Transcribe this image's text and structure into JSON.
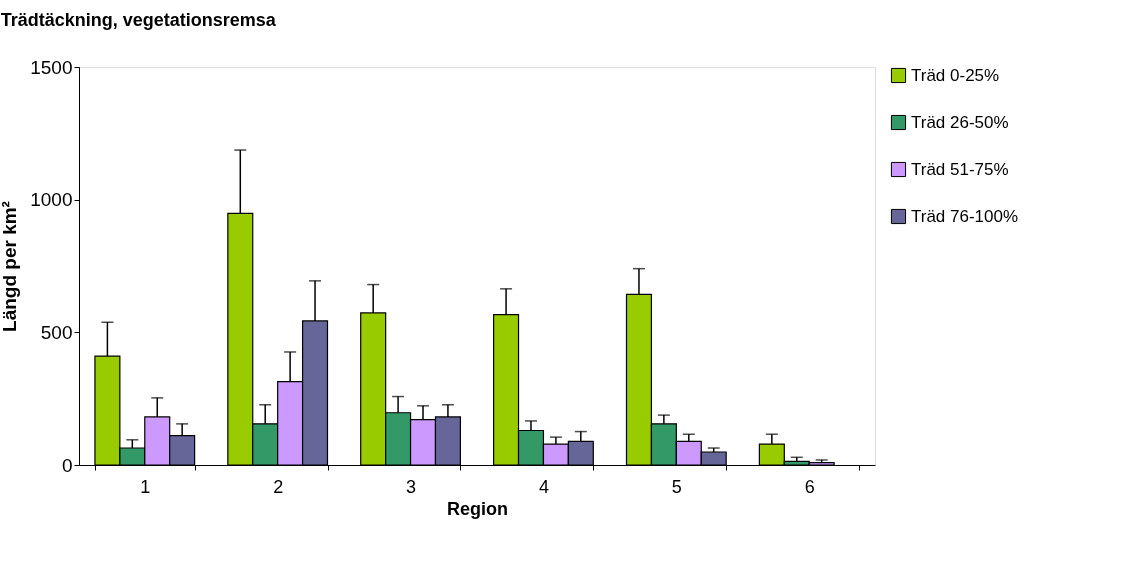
{
  "chart_data": {
    "type": "bar",
    "title": "Trädtäckning, vegetationsremsa",
    "xlabel": "Region",
    "ylabel": "Längd per km²",
    "categories": [
      "1",
      "2",
      "3",
      "4",
      "5",
      "6"
    ],
    "series": [
      {
        "name": "Träd 0-25%",
        "color": "#99cc00",
        "values": [
          410,
          948,
          573,
          567,
          643,
          79
        ],
        "errors": [
          [
            410,
            538
          ],
          [
            948,
            1187
          ],
          [
            573,
            680
          ],
          [
            567,
            664
          ],
          [
            643,
            740
          ],
          [
            79,
            116
          ]
        ]
      },
      {
        "name": "Träd 26-50%",
        "color": "#339966",
        "values": [
          64,
          155,
          197,
          130,
          155,
          14
        ],
        "errors": [
          [
            64,
            95
          ],
          [
            155,
            227
          ],
          [
            197,
            258
          ],
          [
            130,
            166
          ],
          [
            155,
            188
          ],
          [
            14,
            29
          ]
        ]
      },
      {
        "name": "Träd 51-75%",
        "color": "#cc99ff",
        "values": [
          181,
          314,
          171,
          79,
          89,
          9
        ],
        "errors": [
          [
            181,
            253
          ],
          [
            314,
            426
          ],
          [
            171,
            223
          ],
          [
            79,
            105
          ],
          [
            89,
            116
          ],
          [
            9,
            19
          ]
        ]
      },
      {
        "name": "Träd 76-100%",
        "color": "#666699",
        "values": [
          111,
          543,
          181,
          89,
          49,
          null
        ],
        "errors": [
          [
            111,
            155
          ],
          [
            543,
            694
          ],
          [
            181,
            227
          ],
          [
            89,
            126
          ],
          [
            49,
            64
          ],
          null
        ]
      }
    ],
    "ylim": [
      0,
      1500
    ],
    "yticks": [
      0,
      500,
      1000,
      1500
    ],
    "grid": false,
    "legend": "right"
  }
}
